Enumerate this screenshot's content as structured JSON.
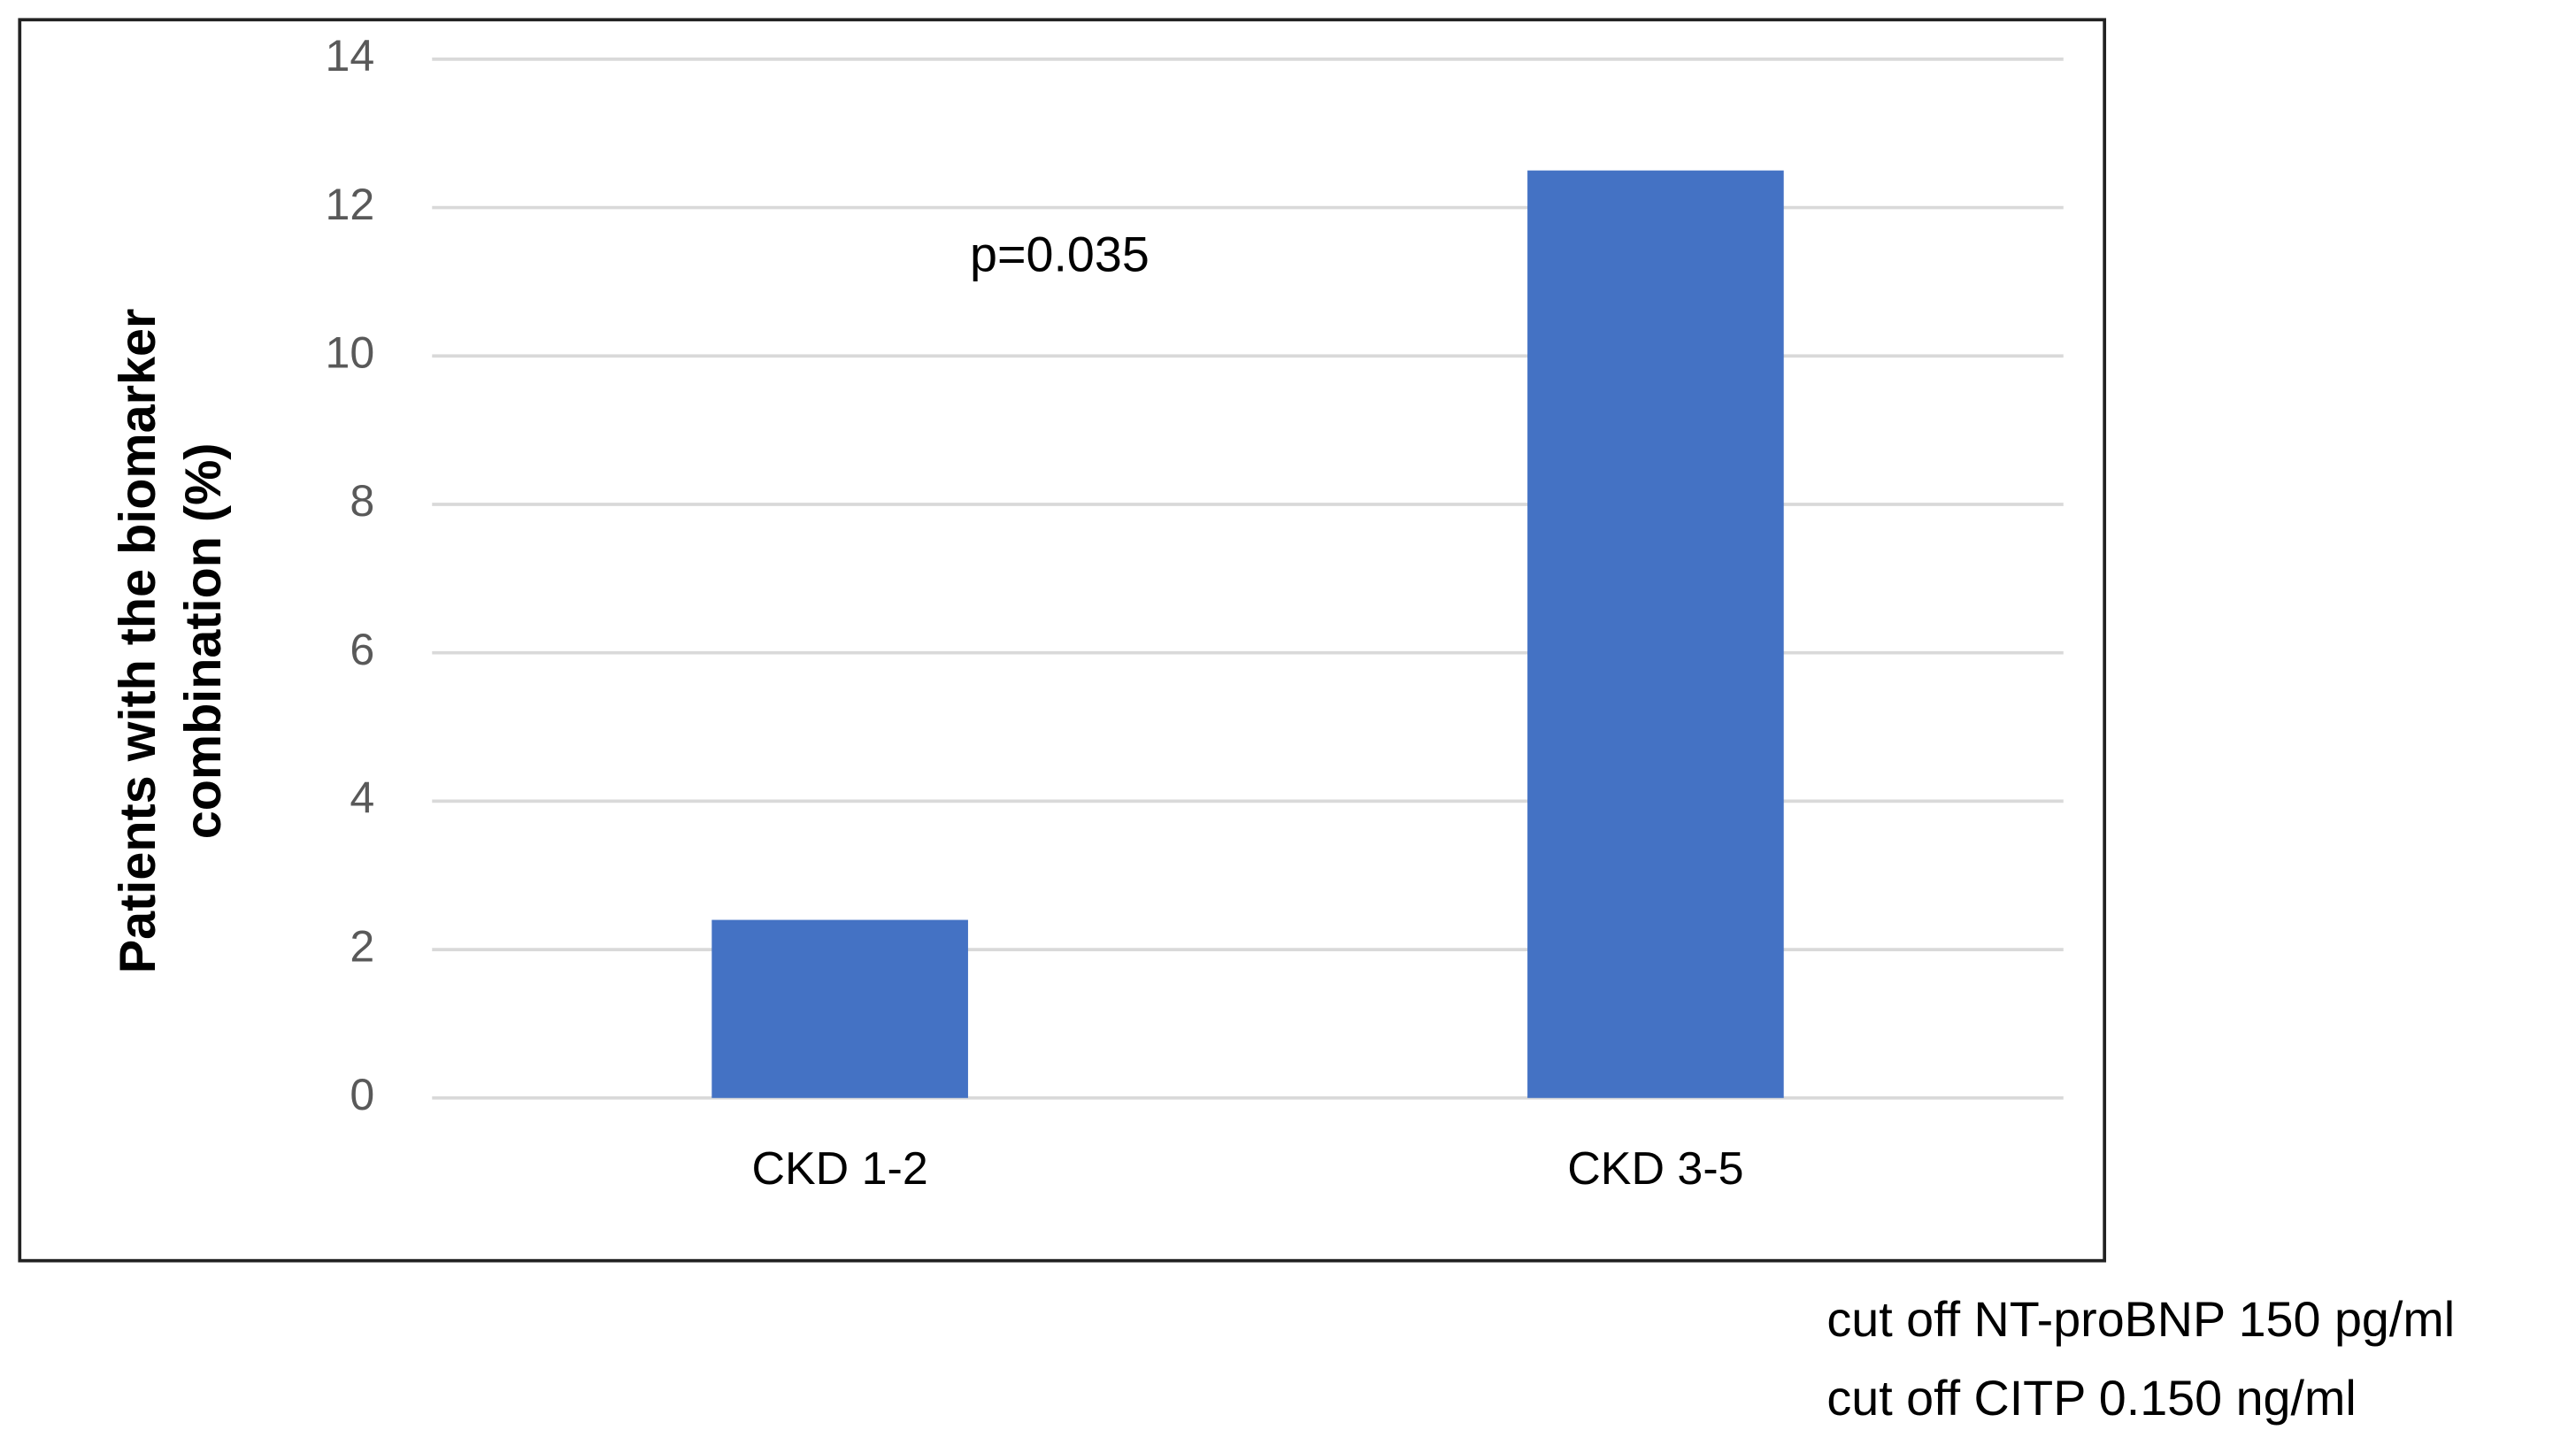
{
  "chart_data": {
    "type": "bar",
    "y_label": [
      "Patients with the biomarker",
      "combination (%)"
    ],
    "categories": [
      "CKD 1-2",
      "CKD 3-5"
    ],
    "values": [
      2.4,
      12.5
    ],
    "color": "#4472c4",
    "ylim": [
      0,
      14
    ],
    "yticks": [
      0,
      2,
      4,
      6,
      8,
      10,
      12,
      14
    ],
    "grid": true,
    "annotations": [
      "p=0.035"
    ],
    "footnotes": [
      "cut off NT-proBNP 150 pg/ml",
      "cut off CITP 0.150 ng/ml"
    ]
  }
}
